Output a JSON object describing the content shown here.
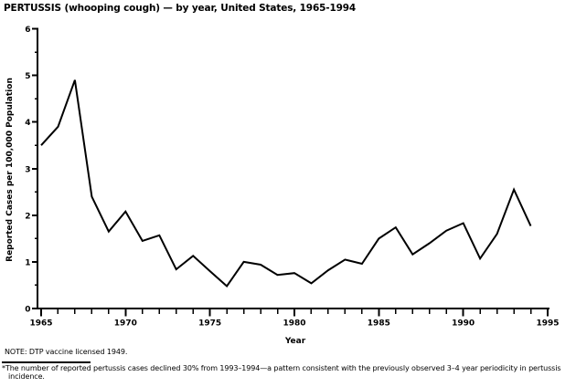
{
  "title": "PERTUSSIS (whooping cough) — by year, United States, 1965-1994",
  "chart_data": {
    "type": "line",
    "title": "PERTUSSIS (whooping cough) — by year, United States, 1965-1994",
    "xlabel": "Year",
    "ylabel": "Reported Cases per 100,000 Population",
    "xlim": [
      1965,
      1995
    ],
    "ylim": [
      0,
      6
    ],
    "x_major_ticks": [
      1965,
      1970,
      1975,
      1980,
      1985,
      1990,
      1995
    ],
    "y_major_ticks": [
      0,
      1,
      2,
      3,
      4,
      5,
      6
    ],
    "x_minor_step": 1,
    "y_minor_step": 0.5,
    "grid": false,
    "legend": "none",
    "line_color": "#000000",
    "x": [
      1965,
      1966,
      1967,
      1968,
      1969,
      1970,
      1971,
      1972,
      1973,
      1974,
      1975,
      1976,
      1977,
      1978,
      1979,
      1980,
      1981,
      1982,
      1983,
      1984,
      1985,
      1986,
      1987,
      1988,
      1989,
      1990,
      1991,
      1992,
      1993,
      1994
    ],
    "series": [
      {
        "name": "Reported pertussis cases per 100,000 population",
        "values": [
          3.5,
          3.9,
          4.9,
          2.4,
          1.65,
          2.08,
          1.45,
          1.57,
          0.84,
          1.13,
          0.8,
          0.48,
          1.0,
          0.94,
          0.72,
          0.76,
          0.54,
          0.82,
          1.05,
          0.96,
          1.5,
          1.74,
          1.16,
          1.4,
          1.67,
          1.83,
          1.07,
          1.6,
          2.55,
          1.77
        ]
      }
    ]
  },
  "notes": {
    "note": "NOTE: DTP vaccine licensed 1949.",
    "footnote_marker": "*",
    "footnote": "The number of reported pertussis cases declined 30% from 1993–1994—a pattern consistent with the previously observed 3–4 year periodicity in pertussis incidence."
  }
}
